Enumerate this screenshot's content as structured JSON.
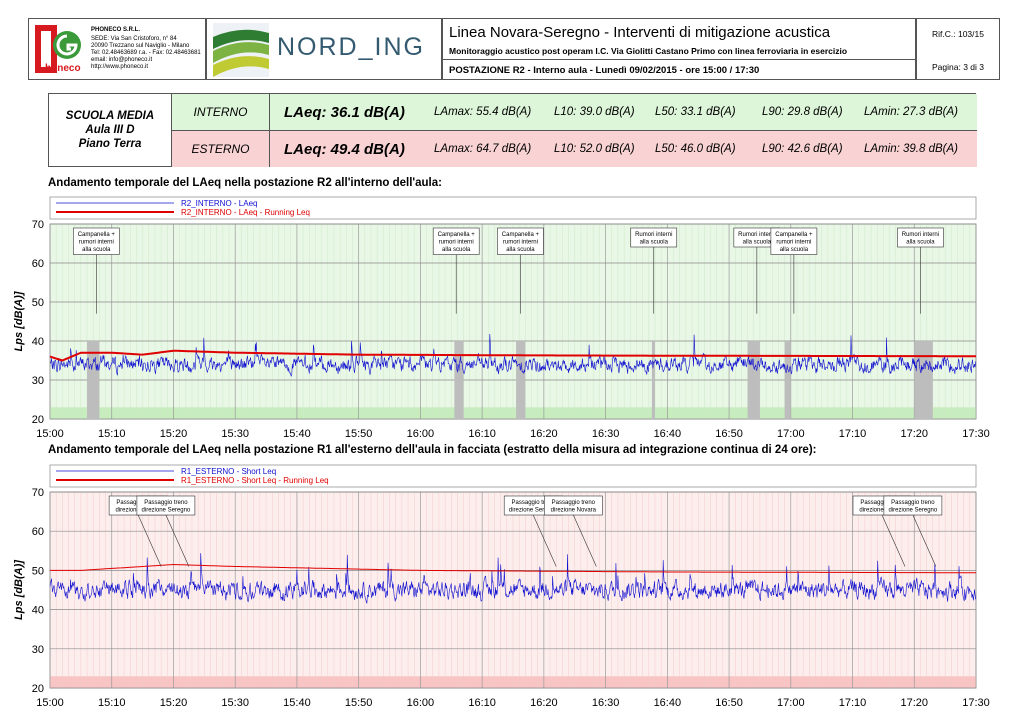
{
  "company": {
    "name": "PHONECO S.R.L.",
    "address1": "SEDE: Via San Cristoforo, n° 84",
    "address2": "20090 Trezzano sul Naviglio - Milano",
    "phone": "Tel: 02.48463689 r.a. - Fax: 02.48463681",
    "email": "email: info@phoneco.it",
    "web": "http://www.phoneco.it",
    "logo_text": "honeco",
    "colors": {
      "red": "#d71920",
      "green": "#3a9a3a"
    }
  },
  "partner_logo": "NORD_ING",
  "header": {
    "title": "Linea Novara-Seregno - Interventi di mitigazione acustica",
    "subtitle": "Monitoraggio acustico post operam I.C. Via Giolitti Castano Primo con linea ferroviaria in esercizio",
    "station": "POSTAZIONE R2 - Interno aula - Lunedì 09/02/2015 - ore 15:00 / 17:30",
    "ref": "Rif.C.: 103/15",
    "page": "Pagina: 3 di 3"
  },
  "summary": {
    "location": [
      "SCUOLA MEDIA",
      "Aula III D",
      "Piano Terra"
    ],
    "rows": [
      {
        "label": "INTERNO",
        "laeq": "LAeq: 36.1 dB(A)",
        "lamax": "LAmax: 55.4 dB(A)",
        "l10": "L10: 39.0 dB(A)",
        "l50": "L50: 33.1 dB(A)",
        "l90": "L90: 29.8 dB(A)",
        "lamin": "LAmin: 27.3 dB(A)",
        "color": "#ddf5d8"
      },
      {
        "label": "ESTERNO",
        "laeq": "LAeq: 49.4 dB(A)",
        "lamax": "LAmax: 64.7 dB(A)",
        "l10": "L10: 52.0 dB(A)",
        "l50": "L50: 46.0 dB(A)",
        "l90": "L90: 42.6 dB(A)",
        "lamin": "LAmin: 39.8 dB(A)",
        "color": "#f9d3d3"
      }
    ]
  },
  "chart_data": [
    {
      "type": "line",
      "title": "Andamento temporale del LAeq nella postazione R2 all'interno dell'aula:",
      "ylabel": "Lps [dB(A)]",
      "xlabel": "",
      "x_ticks": [
        "15:00",
        "15:10",
        "15:20",
        "15:30",
        "15:40",
        "15:50",
        "16:00",
        "16:10",
        "16:20",
        "16:30",
        "16:40",
        "16:50",
        "17:00",
        "17:10",
        "17:20",
        "17:30"
      ],
      "y_ticks": [
        20,
        30,
        40,
        50,
        60,
        70
      ],
      "ylim": [
        20,
        70
      ],
      "xlim_minutes": [
        0,
        150
      ],
      "grid": true,
      "background": "#e9f7e6",
      "series": [
        {
          "name": "R2_INTERNO - LAeq",
          "color": "#1010d0",
          "baseline": 34,
          "spread": 3.5,
          "level_note": "approx. 28-40 dB(A) fluctuating"
        },
        {
          "name": "R2_INTERNO - LAeq - Running Leq",
          "color": "#e00000",
          "values_minutes": [
            0,
            2,
            5,
            10,
            15,
            20,
            30,
            50,
            80,
            110,
            150
          ],
          "values": [
            36,
            35,
            37,
            37,
            36.5,
            37.5,
            37,
            36.5,
            36.3,
            36.2,
            36.1
          ]
        }
      ],
      "masked_intervals_minutes": [
        [
          6,
          8
        ],
        [
          65.5,
          67
        ],
        [
          75.5,
          77
        ],
        [
          97.5,
          98
        ],
        [
          113,
          115
        ],
        [
          119,
          120
        ],
        [
          140,
          143
        ]
      ],
      "masked_color": "#bdbdbd",
      "annotations": [
        {
          "text": "Campanella +\nrumori interni\nalla scuola",
          "at_minute": 7.5
        },
        {
          "text": "Campanella +\nrumori interni\nalla scuola",
          "at_minute": 65.8
        },
        {
          "text": "Campanella +\nrumori interni\nalla scuola",
          "at_minute": 76.2
        },
        {
          "text": "Rumori interni\nalla scuola",
          "at_minute": 97.8
        },
        {
          "text": "Rumori interni\nalla scuola",
          "at_minute": 114.5
        },
        {
          "text": "Campanella +\nrumori interni\nalla scuola",
          "at_minute": 120.5
        },
        {
          "text": "Rumori interni\nalla scuola",
          "at_minute": 141
        }
      ]
    },
    {
      "type": "line",
      "title": "Andamento temporale del LAeq nella postazione R1 all'esterno dell'aula in facciata (estratto della misura ad integrazione continua di 24 ore):",
      "ylabel": "Lps [dB(A)]",
      "xlabel": "",
      "x_ticks": [
        "15:00",
        "15:10",
        "15:20",
        "15:30",
        "15:40",
        "15:50",
        "16:00",
        "16:10",
        "16:20",
        "16:30",
        "16:40",
        "16:50",
        "17:00",
        "17:10",
        "17:20",
        "17:30"
      ],
      "y_ticks": [
        20,
        30,
        40,
        50,
        60,
        70
      ],
      "ylim": [
        20,
        70
      ],
      "xlim_minutes": [
        0,
        150
      ],
      "grid": true,
      "background": "#fdeeee",
      "series": [
        {
          "name": "R1_ESTERNO - Short Leq",
          "color": "#1010d0",
          "baseline": 45,
          "spread": 4,
          "level_note": "approx. 40-63 dB(A) with peaks"
        },
        {
          "name": "R1_ESTERNO - Short Leq - Running Leq",
          "color": "#e00000",
          "values_minutes": [
            0,
            5,
            10,
            15,
            20,
            30,
            60,
            100,
            150
          ],
          "values": [
            50,
            50,
            50.5,
            51,
            51.5,
            51,
            50,
            49.6,
            49.4
          ]
        }
      ],
      "annotations": [
        {
          "text": "Passaggio treno\ndirezione Novara",
          "at_minute": 18
        },
        {
          "text": "Passaggio treno\ndirezione Seregno",
          "at_minute": 22.5
        },
        {
          "text": "Passaggio treno\ndirezione Seregno",
          "at_minute": 82
        },
        {
          "text": "Passaggio treno\ndirezione Novara",
          "at_minute": 88.5
        },
        {
          "text": "Passaggio treno\ndirezione Novara",
          "at_minute": 138.5
        },
        {
          "text": "Passaggio treno\ndirezione Seregno",
          "at_minute": 143.5
        }
      ]
    }
  ]
}
